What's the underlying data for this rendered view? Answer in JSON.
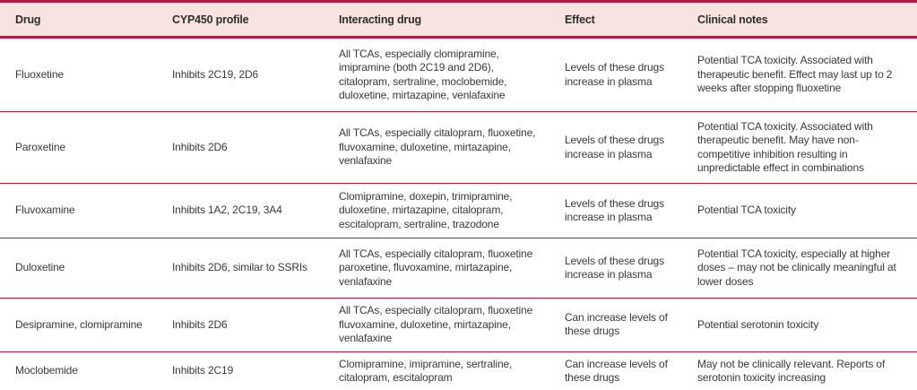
{
  "colors": {
    "border_accent": "#aa1e44",
    "header_background": "#f7e4e0",
    "body_text": "#3a3a38"
  },
  "table": {
    "columns": [
      "Drug",
      "CYP450 profile",
      "Interacting drug",
      "Effect",
      "Clinical notes"
    ],
    "rows": [
      {
        "drug": "Fluoxetine",
        "cyp450_profile": "Inhibits 2C19, 2D6",
        "interacting_drug": "All TCAs, especially clomipramine, imipramine (both 2C19 and 2D6), citalopram, sertraline, moclobemide, duloxetine, mirtazapine, venlafaxine",
        "effect": "Levels of these drugs increase in plasma",
        "clinical_notes": "Potential TCA toxicity. Associated with therapeutic benefit. Effect may last up to 2 weeks after stopping fluoxetine"
      },
      {
        "drug": "Paroxetine",
        "cyp450_profile": "Inhibits 2D6",
        "interacting_drug": "All TCAs, especially citalopram, fluoxetine, fluvoxamine, duloxetine, mirtazapine, venlafaxine",
        "effect": "Levels of these drugs increase in plasma",
        "clinical_notes": "Potential TCA toxicity. Associated with therapeutic benefit. May have non-competitive inhibition resulting in unpredictable effect in combinations"
      },
      {
        "drug": "Fluvoxamine",
        "cyp450_profile": "Inhibits 1A2, 2C19, 3A4",
        "interacting_drug": "Clomipramine, doxepin, trimipramine, duloxetine, mirtazapine, citalopram, escitalopram, sertraline, trazodone",
        "effect": "Levels of these drugs increase in plasma",
        "clinical_notes": "Potential TCA toxicity"
      },
      {
        "drug": "Duloxetine",
        "cyp450_profile": "Inhibits 2D6, similar to SSRIs",
        "interacting_drug": "All TCAs, especially citalopram, fluoxetine paroxetine, fluvoxamine, mirtazapine, venlafaxine",
        "effect": "Levels of these drugs increase in plasma",
        "clinical_notes": "Potential TCA toxicity, especially at higher doses – may not be clinically meaningful at lower doses"
      },
      {
        "drug": "Desipramine, clomipramine",
        "cyp450_profile": "Inhibits 2D6",
        "interacting_drug": "All TCAs, especially citalopram, fluoxetine fluvoxamine, duloxetine, mirtazapine, venlafaxine",
        "effect": "Can increase levels of these drugs",
        "clinical_notes": "Potential serotonin toxicity"
      },
      {
        "drug": "Moclobemide",
        "cyp450_profile": "Inhibits 2C19",
        "interacting_drug": "Clomipramine, imipramine, sertraline, citalopram, escitalopram",
        "effect": "Can increase levels of these drugs",
        "clinical_notes": "May not be clinically relevant. Reports of serotonin toxicity increasing"
      }
    ]
  }
}
